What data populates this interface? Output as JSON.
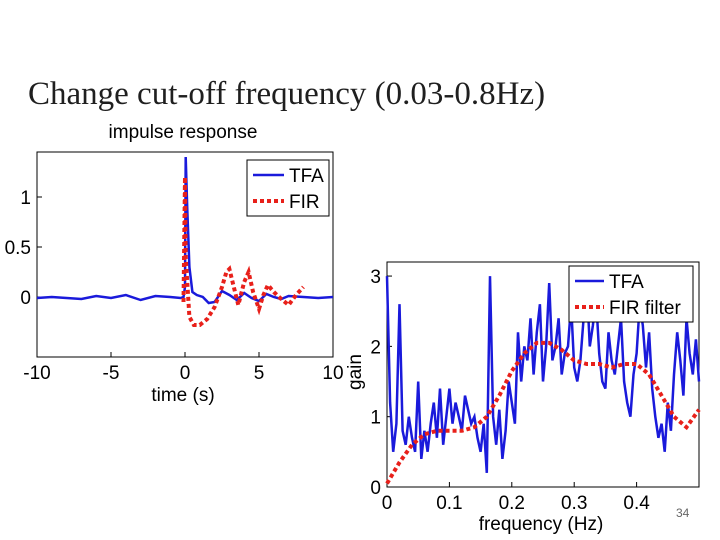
{
  "slide": {
    "title": "Change cut-off  frequency (0.03-0.8Hz)",
    "page_number": "34"
  },
  "colors": {
    "tfa": "#1a1adb",
    "fir": "#e8201a"
  },
  "chart_data": [
    {
      "type": "line",
      "title": "impulse response",
      "xlabel": "time (s)",
      "ylabel": "",
      "xlim": [
        -10,
        10
      ],
      "ylim": [
        -0.6,
        1.45
      ],
      "xticks": [
        -10,
        -5,
        0,
        5,
        10
      ],
      "xtick_labels": [
        "-10",
        "-5",
        "0",
        "5",
        "10"
      ],
      "yticks": [
        0,
        0.5,
        1
      ],
      "ytick_labels": [
        "0",
        "0.5",
        "1"
      ],
      "legend": {
        "position": "top-right",
        "entries": [
          "TFA",
          "FIR"
        ]
      },
      "series": [
        {
          "name": "TFA",
          "style": "solid",
          "x": [
            -10,
            -9,
            -8,
            -7,
            -6,
            -5,
            -4,
            -3,
            -2,
            -1,
            -0.3,
            -0.1,
            0,
            0.05,
            0.15,
            0.3,
            0.5,
            0.8,
            1.2,
            1.6,
            2,
            2.5,
            3,
            3.5,
            4,
            4.5,
            5,
            5.5,
            6,
            6.5,
            7,
            8,
            9,
            10
          ],
          "y": [
            -0.01,
            0.0,
            -0.01,
            -0.02,
            0.01,
            -0.01,
            0.02,
            -0.03,
            0.01,
            0.0,
            -0.01,
            0.0,
            0.1,
            1.4,
            0.9,
            0.3,
            0.05,
            0.02,
            0.0,
            -0.06,
            -0.05,
            0.06,
            0.02,
            -0.03,
            0.04,
            -0.01,
            -0.04,
            0.03,
            0.0,
            -0.02,
            0.01,
            0.0,
            -0.01,
            0.0
          ]
        },
        {
          "name": "FIR",
          "style": "dotted",
          "x": [
            -0.1,
            0,
            0.05,
            0.3,
            0.6,
            1,
            1.5,
            2,
            2.5,
            2.8,
            3,
            3.3,
            3.6,
            4,
            4.3,
            4.6,
            5,
            5.3,
            5.6,
            6,
            6.5,
            7,
            7.5,
            8
          ],
          "y": [
            -0.05,
            1.2,
            0.4,
            -0.2,
            -0.28,
            -0.28,
            -0.22,
            -0.1,
            0.1,
            0.25,
            0.28,
            0.1,
            -0.08,
            0.15,
            0.25,
            0.05,
            -0.12,
            0.02,
            0.12,
            0.05,
            -0.02,
            -0.08,
            0.02,
            0.1
          ]
        }
      ]
    },
    {
      "type": "line",
      "title": "",
      "xlabel": "frequency (Hz)",
      "ylabel": "gain",
      "xlim": [
        0,
        0.5
      ],
      "ylim": [
        0,
        3.2
      ],
      "xticks": [
        0,
        0.1,
        0.2,
        0.3,
        0.4
      ],
      "xtick_labels": [
        "0",
        "0.1",
        "0.2",
        "0.3",
        "0.4"
      ],
      "yticks": [
        0,
        1,
        2,
        3
      ],
      "ytick_labels": [
        "0",
        "1",
        "2",
        "3"
      ],
      "legend": {
        "position": "top-right",
        "entries": [
          "TFA",
          "FIR filter"
        ]
      },
      "series": [
        {
          "name": "TFA",
          "style": "solid",
          "x": [
            0.0,
            0.005,
            0.01,
            0.015,
            0.02,
            0.025,
            0.03,
            0.035,
            0.04,
            0.045,
            0.05,
            0.055,
            0.06,
            0.065,
            0.07,
            0.075,
            0.08,
            0.085,
            0.09,
            0.095,
            0.1,
            0.105,
            0.11,
            0.115,
            0.12,
            0.125,
            0.13,
            0.135,
            0.14,
            0.145,
            0.15,
            0.155,
            0.16,
            0.165,
            0.17,
            0.175,
            0.18,
            0.185,
            0.19,
            0.195,
            0.2,
            0.205,
            0.21,
            0.215,
            0.22,
            0.225,
            0.23,
            0.235,
            0.24,
            0.245,
            0.25,
            0.255,
            0.26,
            0.265,
            0.27,
            0.275,
            0.28,
            0.285,
            0.29,
            0.295,
            0.3,
            0.305,
            0.31,
            0.315,
            0.32,
            0.325,
            0.33,
            0.335,
            0.34,
            0.345,
            0.35,
            0.355,
            0.36,
            0.365,
            0.37,
            0.375,
            0.38,
            0.385,
            0.39,
            0.395,
            0.4,
            0.405,
            0.41,
            0.415,
            0.42,
            0.425,
            0.43,
            0.435,
            0.44,
            0.445,
            0.45,
            0.455,
            0.46,
            0.465,
            0.47,
            0.475,
            0.48,
            0.485,
            0.49,
            0.495,
            0.5
          ],
          "y": [
            3.0,
            1.2,
            0.5,
            0.9,
            2.6,
            0.8,
            0.6,
            1.0,
            0.7,
            0.5,
            1.5,
            0.4,
            0.8,
            0.5,
            0.9,
            1.2,
            0.7,
            1.4,
            0.6,
            1.0,
            1.4,
            0.9,
            1.2,
            1.0,
            0.8,
            1.3,
            1.1,
            0.9,
            1.0,
            0.7,
            0.5,
            0.9,
            0.2,
            3.0,
            1.0,
            0.6,
            1.1,
            0.4,
            0.8,
            1.5,
            1.2,
            0.9,
            2.2,
            1.5,
            2.0,
            1.8,
            2.4,
            1.6,
            2.2,
            2.6,
            1.5,
            2.0,
            2.9,
            1.8,
            2.0,
            2.4,
            1.6,
            1.9,
            2.0,
            2.6,
            1.7,
            1.5,
            1.8,
            2.4,
            2.9,
            2.0,
            2.3,
            2.7,
            1.9,
            1.5,
            1.4,
            2.2,
            1.8,
            1.6,
            2.0,
            2.4,
            1.5,
            1.2,
            1.0,
            1.6,
            1.9,
            2.6,
            2.3,
            1.7,
            2.2,
            1.4,
            1.0,
            0.7,
            0.9,
            0.5,
            1.2,
            0.8,
            1.6,
            2.2,
            1.8,
            1.3,
            2.4,
            1.9,
            1.6,
            2.1,
            1.5
          ]
        },
        {
          "name": "FIR filter",
          "style": "dotted",
          "x": [
            0.0,
            0.02,
            0.04,
            0.06,
            0.08,
            0.1,
            0.12,
            0.14,
            0.16,
            0.18,
            0.2,
            0.22,
            0.24,
            0.26,
            0.28,
            0.3,
            0.32,
            0.34,
            0.36,
            0.38,
            0.4,
            0.42,
            0.44,
            0.46,
            0.48,
            0.5
          ],
          "y": [
            0.05,
            0.35,
            0.6,
            0.75,
            0.8,
            0.8,
            0.8,
            0.85,
            1.0,
            1.3,
            1.65,
            1.9,
            2.05,
            2.05,
            1.95,
            1.8,
            1.75,
            1.75,
            1.7,
            1.75,
            1.75,
            1.6,
            1.3,
            1.0,
            0.85,
            1.1
          ]
        }
      ]
    }
  ]
}
